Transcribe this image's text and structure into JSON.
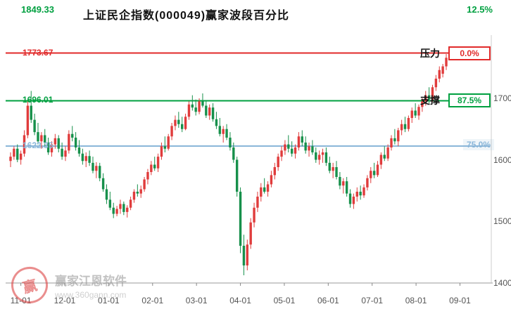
{
  "chart_data": {
    "type": "candlestick",
    "title": "上证民企指数(000049)赢家波段百分比",
    "x_tick_labels": [
      "11-01",
      "12-01",
      "01-01",
      "02-01",
      "03-01",
      "04-01",
      "05-01",
      "06-01",
      "07-01",
      "08-01",
      "09-01"
    ],
    "y_tick_labels": [
      "1700",
      "1600",
      "1500",
      "1400"
    ],
    "y_tick_prices": [
      1700,
      1600,
      1500,
      1400
    ],
    "ylim": [
      1390,
      1860
    ],
    "levels": [
      {
        "price": 1849.33,
        "price_label": "1849.33",
        "pct_label": "12.5%",
        "color": "#00a040",
        "position": "header"
      },
      {
        "price": 1773.67,
        "price_label": "1773.67",
        "pct_label": "0.0%",
        "color": "#e12a2a",
        "name_label": "压力",
        "boxed": true
      },
      {
        "price": 1696.01,
        "price_label": "1696.01",
        "pct_label": "87.5%",
        "color": "#00a040",
        "name_label": "支撑",
        "boxed": true
      },
      {
        "price": 1622.35,
        "price_label": "1622.35",
        "pct_label": "75.0%",
        "color": "#8ab6d9",
        "boxed": false
      }
    ],
    "colors": {
      "up": "#e03c3c",
      "down": "#17904b",
      "axis_text": "#555555",
      "axis_line": "#999999"
    },
    "candles": [
      [
        1598,
        1612,
        1588,
        1605
      ],
      [
        1605,
        1622,
        1600,
        1618
      ],
      [
        1618,
        1625,
        1596,
        1600
      ],
      [
        1600,
        1615,
        1592,
        1610
      ],
      [
        1610,
        1648,
        1605,
        1640
      ],
      [
        1640,
        1695,
        1635,
        1688
      ],
      [
        1688,
        1712,
        1660,
        1665
      ],
      [
        1665,
        1675,
        1640,
        1645
      ],
      [
        1645,
        1660,
        1625,
        1630
      ],
      [
        1630,
        1645,
        1618,
        1640
      ],
      [
        1640,
        1650,
        1622,
        1628
      ],
      [
        1628,
        1636,
        1608,
        1612
      ],
      [
        1612,
        1630,
        1605,
        1625
      ],
      [
        1625,
        1642,
        1618,
        1635
      ],
      [
        1635,
        1640,
        1612,
        1618
      ],
      [
        1618,
        1628,
        1600,
        1605
      ],
      [
        1605,
        1622,
        1598,
        1615
      ],
      [
        1615,
        1648,
        1610,
        1642
      ],
      [
        1642,
        1655,
        1630,
        1636
      ],
      [
        1636,
        1645,
        1615,
        1620
      ],
      [
        1620,
        1632,
        1605,
        1610
      ],
      [
        1610,
        1618,
        1592,
        1598
      ],
      [
        1598,
        1612,
        1588,
        1606
      ],
      [
        1606,
        1615,
        1590,
        1595
      ],
      [
        1595,
        1605,
        1578,
        1582
      ],
      [
        1582,
        1596,
        1570,
        1590
      ],
      [
        1590,
        1595,
        1565,
        1570
      ],
      [
        1570,
        1578,
        1548,
        1552
      ],
      [
        1552,
        1560,
        1528,
        1535
      ],
      [
        1535,
        1548,
        1518,
        1522
      ],
      [
        1522,
        1530,
        1505,
        1512
      ],
      [
        1512,
        1525,
        1508,
        1520
      ],
      [
        1520,
        1535,
        1512,
        1528
      ],
      [
        1528,
        1532,
        1510,
        1515
      ],
      [
        1515,
        1526,
        1506,
        1522
      ],
      [
        1522,
        1540,
        1518,
        1535
      ],
      [
        1535,
        1552,
        1530,
        1548
      ],
      [
        1548,
        1560,
        1540,
        1545
      ],
      [
        1545,
        1558,
        1538,
        1552
      ],
      [
        1552,
        1572,
        1548,
        1568
      ],
      [
        1568,
        1585,
        1560,
        1580
      ],
      [
        1580,
        1598,
        1575,
        1592
      ],
      [
        1592,
        1605,
        1582,
        1586
      ],
      [
        1586,
        1610,
        1580,
        1605
      ],
      [
        1605,
        1628,
        1600,
        1622
      ],
      [
        1622,
        1638,
        1612,
        1618
      ],
      [
        1618,
        1642,
        1615,
        1638
      ],
      [
        1638,
        1660,
        1632,
        1655
      ],
      [
        1655,
        1672,
        1648,
        1665
      ],
      [
        1665,
        1678,
        1652,
        1658
      ],
      [
        1658,
        1670,
        1645,
        1650
      ],
      [
        1650,
        1675,
        1648,
        1670
      ],
      [
        1670,
        1695,
        1665,
        1690
      ],
      [
        1690,
        1705,
        1680,
        1685
      ],
      [
        1685,
        1698,
        1672,
        1678
      ],
      [
        1678,
        1700,
        1674,
        1695
      ],
      [
        1695,
        1708,
        1685,
        1688
      ],
      [
        1688,
        1695,
        1668,
        1672
      ],
      [
        1672,
        1690,
        1665,
        1685
      ],
      [
        1685,
        1692,
        1662,
        1666
      ],
      [
        1666,
        1678,
        1650,
        1655
      ],
      [
        1655,
        1668,
        1638,
        1642
      ],
      [
        1642,
        1655,
        1628,
        1650
      ],
      [
        1650,
        1658,
        1632,
        1636
      ],
      [
        1636,
        1645,
        1615,
        1620
      ],
      [
        1620,
        1628,
        1595,
        1600
      ],
      [
        1600,
        1605,
        1540,
        1548
      ],
      [
        1548,
        1555,
        1448,
        1460
      ],
      [
        1460,
        1478,
        1412,
        1428
      ],
      [
        1428,
        1470,
        1420,
        1462
      ],
      [
        1462,
        1505,
        1455,
        1498
      ],
      [
        1498,
        1530,
        1490,
        1522
      ],
      [
        1522,
        1548,
        1515,
        1540
      ],
      [
        1540,
        1562,
        1532,
        1555
      ],
      [
        1555,
        1570,
        1545,
        1548
      ],
      [
        1548,
        1565,
        1540,
        1560
      ],
      [
        1560,
        1582,
        1555,
        1575
      ],
      [
        1575,
        1595,
        1568,
        1588
      ],
      [
        1588,
        1610,
        1582,
        1605
      ],
      [
        1605,
        1622,
        1598,
        1615
      ],
      [
        1615,
        1632,
        1608,
        1625
      ],
      [
        1625,
        1640,
        1612,
        1618
      ],
      [
        1618,
        1630,
        1605,
        1610
      ],
      [
        1610,
        1625,
        1602,
        1620
      ],
      [
        1620,
        1645,
        1615,
        1638
      ],
      [
        1638,
        1648,
        1622,
        1628
      ],
      [
        1628,
        1638,
        1610,
        1615
      ],
      [
        1615,
        1628,
        1605,
        1622
      ],
      [
        1622,
        1632,
        1608,
        1612
      ],
      [
        1612,
        1620,
        1595,
        1600
      ],
      [
        1600,
        1615,
        1592,
        1608
      ],
      [
        1608,
        1618,
        1595,
        1612
      ],
      [
        1612,
        1620,
        1590,
        1595
      ],
      [
        1595,
        1605,
        1578,
        1582
      ],
      [
        1582,
        1595,
        1570,
        1588
      ],
      [
        1588,
        1598,
        1568,
        1572
      ],
      [
        1572,
        1580,
        1552,
        1558
      ],
      [
        1558,
        1570,
        1545,
        1565
      ],
      [
        1565,
        1572,
        1540,
        1545
      ],
      [
        1545,
        1552,
        1522,
        1528
      ],
      [
        1528,
        1545,
        1520,
        1540
      ],
      [
        1540,
        1555,
        1532,
        1548
      ],
      [
        1548,
        1558,
        1535,
        1542
      ],
      [
        1542,
        1560,
        1538,
        1555
      ],
      [
        1555,
        1575,
        1550,
        1570
      ],
      [
        1570,
        1588,
        1562,
        1582
      ],
      [
        1582,
        1595,
        1570,
        1575
      ],
      [
        1575,
        1598,
        1572,
        1592
      ],
      [
        1592,
        1612,
        1585,
        1608
      ],
      [
        1608,
        1622,
        1598,
        1602
      ],
      [
        1602,
        1625,
        1598,
        1620
      ],
      [
        1620,
        1640,
        1615,
        1635
      ],
      [
        1635,
        1650,
        1625,
        1630
      ],
      [
        1630,
        1652,
        1622,
        1648
      ],
      [
        1648,
        1665,
        1640,
        1658
      ],
      [
        1658,
        1670,
        1645,
        1650
      ],
      [
        1650,
        1672,
        1646,
        1668
      ],
      [
        1668,
        1685,
        1660,
        1680
      ],
      [
        1680,
        1692,
        1668,
        1672
      ],
      [
        1672,
        1690,
        1665,
        1686
      ],
      [
        1686,
        1700,
        1678,
        1695
      ],
      [
        1695,
        1712,
        1688,
        1705
      ],
      [
        1705,
        1718,
        1692,
        1698
      ],
      [
        1698,
        1722,
        1694,
        1718
      ],
      [
        1718,
        1738,
        1712,
        1732
      ],
      [
        1732,
        1752,
        1726,
        1746
      ],
      [
        1740,
        1756,
        1734,
        1752
      ],
      [
        1752,
        1772,
        1746,
        1766
      ]
    ]
  },
  "watermark": {
    "name": "赢家江恩软件",
    "url": "www.360gann.com",
    "seal_char": "赢"
  }
}
